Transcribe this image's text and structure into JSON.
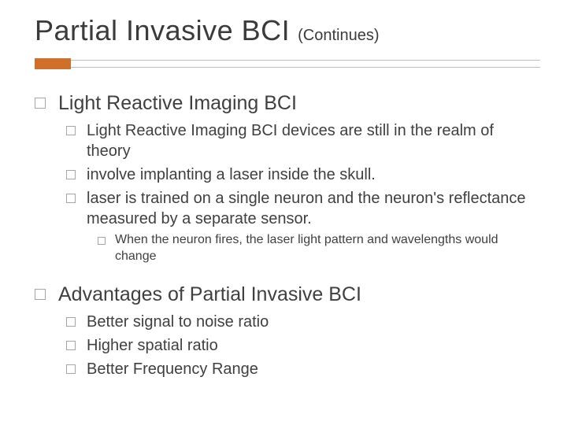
{
  "colors": {
    "background": "#ffffff",
    "text": "#3f3f3f",
    "accent": "#d06f2a",
    "rule": "#bfbfbf",
    "bullet_border": "#a6a6a6"
  },
  "typography": {
    "title_fontsize": 36,
    "subtitle_fontsize": 20,
    "l1_fontsize": 25,
    "l2_fontsize": 20,
    "l3_fontsize": 16,
    "font_family": "Gill Sans"
  },
  "layout": {
    "slide_width": 720,
    "slide_height": 540,
    "accent_swatch_width": 46,
    "accent_band_height": 14
  },
  "title": "Partial Invasive BCI",
  "subtitle": "(Continues)",
  "sections": [
    {
      "heading": "Light Reactive Imaging BCI",
      "items": [
        "Light Reactive Imaging BCI devices are still in the realm of theory",
        "involve implanting a laser inside the skull.",
        "laser is trained on a single neuron and the neuron's reflectance measured by a separate sensor."
      ],
      "subitems_after_last": [
        "When the neuron fires, the laser light pattern and wavelengths would change"
      ]
    },
    {
      "heading": "Advantages of Partial Invasive BCI",
      "items": [
        "Better signal to noise ratio",
        "Higher spatial ratio",
        "Better Frequency Range"
      ]
    }
  ]
}
